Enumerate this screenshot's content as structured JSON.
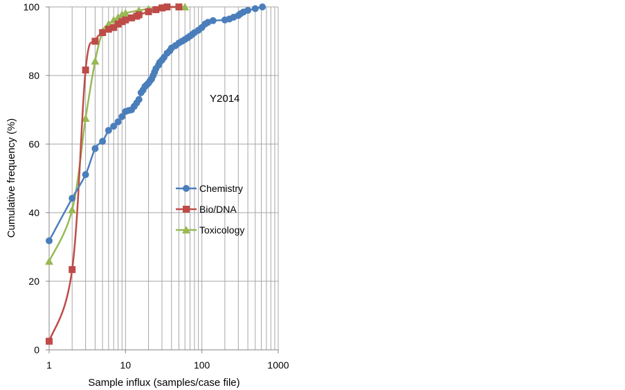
{
  "chart_data": {
    "type": "line",
    "x_scale": "log",
    "xlim": [
      1,
      1000
    ],
    "ylim": [
      0,
      100
    ],
    "x_ticks": [
      1,
      10,
      100,
      1000
    ],
    "x_tick_labels": [
      "1",
      "10",
      "100",
      "1000"
    ],
    "y_ticks": [
      0,
      20,
      40,
      60,
      80,
      100
    ],
    "y_tick_labels": [
      "0",
      "20",
      "40",
      "60",
      "80",
      "100"
    ],
    "xlabel": "Sample influx (samples/case file)",
    "ylabel": "Cumulative frequency (%)",
    "annotation": "Y2014",
    "grid": true,
    "legend_position": "center-right",
    "series": [
      {
        "name": "Chemistry",
        "color": "#4a7ebb",
        "marker": "circle",
        "points": [
          [
            1,
            31.8
          ],
          [
            2,
            44.2
          ],
          [
            3,
            51.1
          ],
          [
            4,
            58.7
          ],
          [
            5,
            60.8
          ],
          [
            6,
            64.0
          ],
          [
            7,
            65.2
          ],
          [
            8,
            66.5
          ],
          [
            9,
            68.0
          ],
          [
            10,
            69.5
          ],
          [
            11,
            69.8
          ],
          [
            12,
            70.0
          ],
          [
            13,
            71.0
          ],
          [
            14,
            72.0
          ],
          [
            15,
            73.0
          ],
          [
            16,
            75.0
          ],
          [
            17,
            75.8
          ],
          [
            18,
            76.8
          ],
          [
            19,
            77.3
          ],
          [
            20,
            77.8
          ],
          [
            21,
            78.5
          ],
          [
            22,
            79.0
          ],
          [
            23,
            80.0
          ],
          [
            24,
            81.0
          ],
          [
            25,
            82.0
          ],
          [
            27,
            83.0
          ],
          [
            28,
            83.8
          ],
          [
            30,
            84.5
          ],
          [
            32,
            85.3
          ],
          [
            35,
            86.5
          ],
          [
            38,
            87.2
          ],
          [
            40,
            88.0
          ],
          [
            45,
            88.7
          ],
          [
            50,
            89.5
          ],
          [
            55,
            90.0
          ],
          [
            60,
            90.5
          ],
          [
            65,
            91.0
          ],
          [
            70,
            91.5
          ],
          [
            75,
            92.0
          ],
          [
            80,
            92.5
          ],
          [
            90,
            93.2
          ],
          [
            100,
            94.0
          ],
          [
            110,
            95.0
          ],
          [
            120,
            95.5
          ],
          [
            140,
            96.0
          ],
          [
            200,
            96.2
          ],
          [
            230,
            96.5
          ],
          [
            260,
            97.0
          ],
          [
            300,
            97.5
          ],
          [
            320,
            98.0
          ],
          [
            350,
            98.5
          ],
          [
            400,
            99.0
          ],
          [
            500,
            99.5
          ],
          [
            620,
            100
          ]
        ]
      },
      {
        "name": "Bio/DNA",
        "color": "#be4b48",
        "marker": "square",
        "points": [
          [
            1,
            2.5
          ],
          [
            2,
            23.4
          ],
          [
            3,
            81.6
          ],
          [
            4,
            90.0
          ],
          [
            5,
            92.5
          ],
          [
            6,
            93.5
          ],
          [
            7,
            94.0
          ],
          [
            8,
            95.0
          ],
          [
            9,
            95.7
          ],
          [
            10,
            96.2
          ],
          [
            12,
            96.8
          ],
          [
            14,
            97.3
          ],
          [
            15,
            97.7
          ],
          [
            20,
            98.6
          ],
          [
            25,
            99.2
          ],
          [
            30,
            99.7
          ],
          [
            35,
            100
          ],
          [
            50,
            100
          ]
        ]
      },
      {
        "name": "Toxicology",
        "color": "#98b954",
        "marker": "triangle",
        "points": [
          [
            1,
            25.8
          ],
          [
            2,
            40.8
          ],
          [
            3,
            67.5
          ],
          [
            4,
            84.2
          ],
          [
            5,
            92.8
          ],
          [
            6,
            95.0
          ],
          [
            7,
            96.2
          ],
          [
            8,
            97.0
          ],
          [
            9,
            97.8
          ],
          [
            10,
            98.2
          ],
          [
            15,
            99.0
          ],
          [
            20,
            99.4
          ],
          [
            30,
            99.8
          ],
          [
            60,
            100
          ]
        ]
      }
    ]
  }
}
